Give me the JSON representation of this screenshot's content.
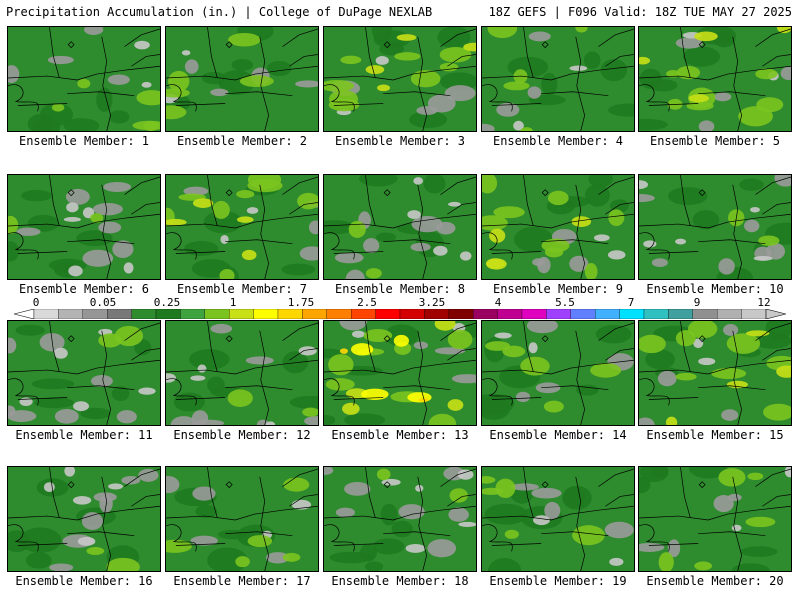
{
  "header": {
    "left": "Precipitation Accumulation (in.) | College of DuPage NEXLAB",
    "right": "18Z GEFS | F096 Valid: 18Z TUE MAY 27 2025"
  },
  "panels": [
    {
      "label": "Ensemble Member: 1",
      "fill_pattern": "moderate"
    },
    {
      "label": "Ensemble Member: 2",
      "fill_pattern": "moderate"
    },
    {
      "label": "Ensemble Member: 3",
      "fill_pattern": "wet"
    },
    {
      "label": "Ensemble Member: 4",
      "fill_pattern": "moderate"
    },
    {
      "label": "Ensemble Member: 5",
      "fill_pattern": "wet"
    },
    {
      "label": "Ensemble Member: 6",
      "fill_pattern": "dry"
    },
    {
      "label": "Ensemble Member: 7",
      "fill_pattern": "wet"
    },
    {
      "label": "Ensemble Member: 8",
      "fill_pattern": "dry"
    },
    {
      "label": "Ensemble Member: 9",
      "fill_pattern": "wet"
    },
    {
      "label": "Ensemble Member: 10",
      "fill_pattern": "dry"
    },
    {
      "label": "Ensemble Member: 11",
      "fill_pattern": "dry"
    },
    {
      "label": "Ensemble Member: 12",
      "fill_pattern": "dry"
    },
    {
      "label": "Ensemble Member: 13",
      "fill_pattern": "very-wet"
    },
    {
      "label": "Ensemble Member: 14",
      "fill_pattern": "moderate"
    },
    {
      "label": "Ensemble Member: 15",
      "fill_pattern": "wet"
    },
    {
      "label": "Ensemble Member: 16",
      "fill_pattern": "dry"
    },
    {
      "label": "Ensemble Member: 17",
      "fill_pattern": "moderate"
    },
    {
      "label": "Ensemble Member: 18",
      "fill_pattern": "dry"
    },
    {
      "label": "Ensemble Member: 19",
      "fill_pattern": "moderate"
    },
    {
      "label": "Ensemble Member: 20",
      "fill_pattern": "moderate"
    }
  ],
  "colorbar": {
    "tick_labels": [
      "0",
      "0.05",
      "0.25",
      "1",
      "1.75",
      "2.5",
      "3.25",
      "4",
      "5.5",
      "7",
      "9",
      "12"
    ],
    "colors": [
      "#d9d9d9",
      "#b4b4b4",
      "#969696",
      "#787878",
      "#2e8b2e",
      "#1f7a1f",
      "#3fa33f",
      "#7bc41f",
      "#c8e016",
      "#ffff00",
      "#ffd700",
      "#ffa500",
      "#ff7f00",
      "#ff4500",
      "#ff0000",
      "#d40000",
      "#a00000",
      "#800000",
      "#9a0060",
      "#c00090",
      "#e000c0",
      "#a040ff",
      "#6080ff",
      "#40b0ff",
      "#00e0ff",
      "#30c0c0",
      "#40a0a0",
      "#909090",
      "#b0b0b0",
      "#c8c8c8"
    ]
  }
}
